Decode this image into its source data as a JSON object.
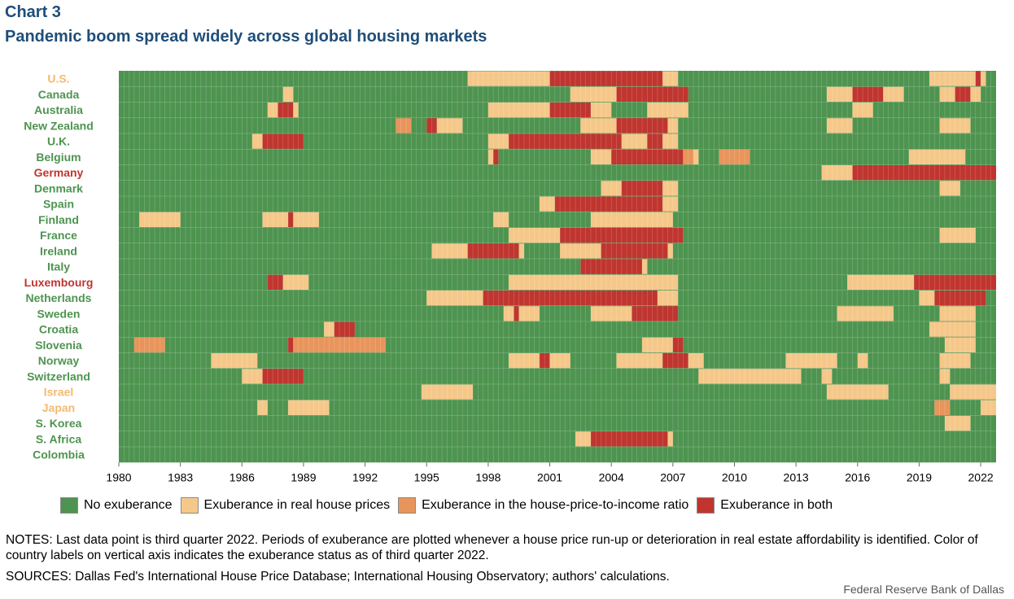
{
  "header": {
    "chart_label": "Chart 3",
    "title": "Pandemic boom spread widely across global housing markets"
  },
  "legend": [
    {
      "label": "No exuberance",
      "color": "#4e9450"
    },
    {
      "label": "Exuberance  in real house prices",
      "color": "#f5c88a"
    },
    {
      "label": "Exuberance  in the house-price-to-income  ratio",
      "color": "#e8955c"
    },
    {
      "label": "Exuberance  in both",
      "color": "#c0352f"
    }
  ],
  "notes": "NOTES: Last data point is third quarter 2022. Periods of exuberance  are plotted whenever a house price run-up or deterioration  in real estate affordability is identified. Color of country labels on vertical axis indicates the exuberance  status as of third quarter 2022.",
  "sources": "SOURCES: Dallas Fed's International  House Price Database; International  Housing Observatory; authors' calculations.",
  "credit": "Federal Reserve  Bank of Dallas",
  "chart_data": {
    "type": "heatmap",
    "title": "Pandemic boom spread widely across global housing markets",
    "x_axis": {
      "range": [
        "1980Q1",
        "2022Q3"
      ],
      "tick_labels": [
        "1980",
        "1983",
        "1986",
        "1989",
        "1992",
        "1995",
        "1998",
        "2001",
        "2004",
        "2007",
        "2010",
        "2013",
        "2016",
        "2019",
        "2022"
      ]
    },
    "frequency": "quarterly",
    "status_codes": {
      "0": "No exuberance",
      "1": "Exuberance in real house prices",
      "2": "Exuberance in the house-price-to-income ratio",
      "3": "Exuberance in both"
    },
    "colors": {
      "0": "#4e9450",
      "1": "#f5c88a",
      "2": "#e8955c",
      "3": "#c0352f"
    },
    "label_colors": {
      "0": "#4e9450",
      "1": "#f5b96e",
      "3": "#c0352f"
    },
    "default_status": 0,
    "countries": [
      {
        "name": "U.S.",
        "label_status": 1,
        "periods": [
          [
            "1997Q1",
            "2000Q4",
            1
          ],
          [
            "2001Q1",
            "2006Q2",
            3
          ],
          [
            "2006Q3",
            "2007Q1",
            1
          ],
          [
            "2019Q3",
            "2021Q3",
            1
          ],
          [
            "2021Q4",
            "2021Q4",
            3
          ],
          [
            "2022Q1",
            "2022Q1",
            1
          ]
        ]
      },
      {
        "name": "Canada",
        "label_status": 0,
        "periods": [
          [
            "1988Q1",
            "1988Q2",
            1
          ],
          [
            "2002Q1",
            "2004Q1",
            1
          ],
          [
            "2004Q2",
            "2007Q3",
            3
          ],
          [
            "2014Q3",
            "2015Q3",
            1
          ],
          [
            "2015Q4",
            "2017Q1",
            3
          ],
          [
            "2017Q2",
            "2018Q1",
            1
          ],
          [
            "2020Q1",
            "2020Q3",
            1
          ],
          [
            "2020Q4",
            "2021Q2",
            3
          ],
          [
            "2021Q3",
            "2021Q4",
            1
          ]
        ]
      },
      {
        "name": "Australia",
        "label_status": 0,
        "periods": [
          [
            "1987Q2",
            "1987Q3",
            1
          ],
          [
            "1987Q4",
            "1988Q2",
            3
          ],
          [
            "1988Q3",
            "1988Q3",
            1
          ],
          [
            "1998Q1",
            "2000Q4",
            1
          ],
          [
            "2001Q1",
            "2002Q4",
            3
          ],
          [
            "2003Q1",
            "2003Q4",
            1
          ],
          [
            "2005Q4",
            "2007Q3",
            1
          ],
          [
            "2015Q4",
            "2016Q3",
            1
          ]
        ]
      },
      {
        "name": "New Zealand",
        "label_status": 0,
        "periods": [
          [
            "1993Q3",
            "1994Q1",
            2
          ],
          [
            "1995Q1",
            "1995Q2",
            3
          ],
          [
            "1995Q3",
            "1996Q3",
            1
          ],
          [
            "2002Q3",
            "2004Q1",
            1
          ],
          [
            "2004Q2",
            "2006Q3",
            3
          ],
          [
            "2006Q4",
            "2007Q1",
            1
          ],
          [
            "2014Q3",
            "2015Q3",
            1
          ],
          [
            "2020Q1",
            "2021Q2",
            1
          ]
        ]
      },
      {
        "name": "U.K.",
        "label_status": 0,
        "periods": [
          [
            "1986Q3",
            "1986Q4",
            1
          ],
          [
            "1987Q1",
            "1988Q4",
            3
          ],
          [
            "1998Q1",
            "1998Q4",
            1
          ],
          [
            "1999Q1",
            "2004Q2",
            3
          ],
          [
            "2004Q3",
            "2005Q3",
            1
          ],
          [
            "2005Q4",
            "2006Q2",
            3
          ],
          [
            "2006Q3",
            "2007Q1",
            1
          ]
        ]
      },
      {
        "name": "Belgium",
        "label_status": 0,
        "periods": [
          [
            "1998Q1",
            "1998Q1",
            1
          ],
          [
            "1998Q2",
            "1998Q2",
            3
          ],
          [
            "2003Q1",
            "2003Q4",
            1
          ],
          [
            "2004Q1",
            "2007Q2",
            3
          ],
          [
            "2007Q3",
            "2007Q4",
            2
          ],
          [
            "2008Q1",
            "2008Q1",
            1
          ],
          [
            "2009Q2",
            "2010Q3",
            2
          ],
          [
            "2018Q3",
            "2021Q1",
            1
          ]
        ]
      },
      {
        "name": "Germany",
        "label_status": 3,
        "periods": [
          [
            "2014Q2",
            "2015Q3",
            1
          ],
          [
            "2015Q4",
            "2022Q3",
            3
          ]
        ]
      },
      {
        "name": "Denmark",
        "label_status": 0,
        "periods": [
          [
            "2003Q3",
            "2004Q2",
            1
          ],
          [
            "2004Q3",
            "2006Q2",
            3
          ],
          [
            "2006Q3",
            "2007Q1",
            1
          ],
          [
            "2020Q1",
            "2020Q4",
            1
          ]
        ]
      },
      {
        "name": "Spain",
        "label_status": 0,
        "periods": [
          [
            "2000Q3",
            "2001Q1",
            1
          ],
          [
            "2001Q2",
            "2006Q2",
            3
          ],
          [
            "2006Q3",
            "2007Q1",
            1
          ]
        ]
      },
      {
        "name": "Finland",
        "label_status": 0,
        "periods": [
          [
            "1981Q1",
            "1982Q4",
            1
          ],
          [
            "1987Q1",
            "1988Q1",
            1
          ],
          [
            "1988Q2",
            "1988Q2",
            3
          ],
          [
            "1988Q3",
            "1989Q3",
            1
          ],
          [
            "1998Q2",
            "1998Q4",
            1
          ],
          [
            "2003Q1",
            "2006Q4",
            1
          ]
        ]
      },
      {
        "name": "France",
        "label_status": 0,
        "periods": [
          [
            "1999Q1",
            "2001Q2",
            1
          ],
          [
            "2001Q3",
            "2007Q2",
            3
          ],
          [
            "2020Q1",
            "2021Q3",
            1
          ]
        ]
      },
      {
        "name": "Ireland",
        "label_status": 0,
        "periods": [
          [
            "1995Q2",
            "1996Q4",
            1
          ],
          [
            "1997Q1",
            "1999Q2",
            3
          ],
          [
            "1999Q3",
            "1999Q3",
            1
          ],
          [
            "2001Q3",
            "2003Q2",
            1
          ],
          [
            "2003Q3",
            "2006Q3",
            3
          ],
          [
            "2006Q4",
            "2006Q4",
            1
          ]
        ]
      },
      {
        "name": "Italy",
        "label_status": 0,
        "periods": [
          [
            "2002Q3",
            "2005Q2",
            3
          ],
          [
            "2005Q3",
            "2005Q3",
            1
          ]
        ]
      },
      {
        "name": "Luxembourg",
        "label_status": 3,
        "periods": [
          [
            "1987Q2",
            "1987Q4",
            3
          ],
          [
            "1988Q1",
            "1989Q1",
            1
          ],
          [
            "1999Q1",
            "2007Q1",
            1
          ],
          [
            "2015Q3",
            "2018Q3",
            1
          ],
          [
            "2018Q4",
            "2022Q3",
            3
          ]
        ]
      },
      {
        "name": "Netherlands",
        "label_status": 0,
        "periods": [
          [
            "1995Q1",
            "1997Q3",
            1
          ],
          [
            "1997Q4",
            "2006Q1",
            3
          ],
          [
            "2006Q2",
            "2007Q1",
            1
          ],
          [
            "2019Q1",
            "2019Q3",
            1
          ],
          [
            "2019Q4",
            "2022Q1",
            3
          ]
        ]
      },
      {
        "name": "Sweden",
        "label_status": 0,
        "periods": [
          [
            "1998Q4",
            "1999Q1",
            1
          ],
          [
            "1999Q2",
            "1999Q2",
            3
          ],
          [
            "1999Q3",
            "2000Q2",
            1
          ],
          [
            "2003Q1",
            "2004Q4",
            1
          ],
          [
            "2005Q1",
            "2007Q1",
            3
          ],
          [
            "2015Q1",
            "2017Q3",
            1
          ],
          [
            "2020Q1",
            "2021Q3",
            1
          ]
        ]
      },
      {
        "name": "Croatia",
        "label_status": 0,
        "periods": [
          [
            "1990Q1",
            "1990Q2",
            1
          ],
          [
            "1990Q3",
            "1991Q2",
            3
          ],
          [
            "2019Q3",
            "2021Q3",
            1
          ]
        ]
      },
      {
        "name": "Slovenia",
        "label_status": 0,
        "periods": [
          [
            "1980Q4",
            "1982Q1",
            2
          ],
          [
            "1988Q2",
            "1988Q2",
            3
          ],
          [
            "1988Q3",
            "1992Q4",
            2
          ],
          [
            "2005Q3",
            "2006Q4",
            1
          ],
          [
            "2007Q1",
            "2007Q2",
            3
          ],
          [
            "2020Q2",
            "2021Q3",
            1
          ]
        ]
      },
      {
        "name": "Norway",
        "label_status": 0,
        "periods": [
          [
            "1984Q3",
            "1986Q3",
            1
          ],
          [
            "1999Q1",
            "2000Q2",
            1
          ],
          [
            "2000Q3",
            "2000Q4",
            3
          ],
          [
            "2001Q1",
            "2001Q4",
            1
          ],
          [
            "2004Q2",
            "2006Q2",
            1
          ],
          [
            "2006Q3",
            "2007Q3",
            3
          ],
          [
            "2007Q4",
            "2008Q2",
            1
          ],
          [
            "2012Q3",
            "2014Q4",
            1
          ],
          [
            "2016Q1",
            "2016Q2",
            1
          ],
          [
            "2020Q1",
            "2021Q2",
            1
          ]
        ]
      },
      {
        "name": "Switzerland",
        "label_status": 0,
        "periods": [
          [
            "1986Q1",
            "1986Q4",
            1
          ],
          [
            "1987Q1",
            "1988Q4",
            3
          ],
          [
            "2008Q2",
            "2013Q1",
            1
          ],
          [
            "2014Q2",
            "2014Q3",
            1
          ],
          [
            "2020Q1",
            "2020Q2",
            1
          ]
        ]
      },
      {
        "name": "Israel",
        "label_status": 1,
        "periods": [
          [
            "1994Q4",
            "1997Q1",
            1
          ],
          [
            "2014Q3",
            "2017Q2",
            1
          ],
          [
            "2020Q3",
            "2022Q3",
            1
          ]
        ]
      },
      {
        "name": "Japan",
        "label_status": 1,
        "periods": [
          [
            "1986Q4",
            "1987Q1",
            1
          ],
          [
            "1988Q2",
            "1990Q1",
            1
          ],
          [
            "2019Q4",
            "2020Q2",
            2
          ],
          [
            "2022Q1",
            "2022Q3",
            1
          ]
        ]
      },
      {
        "name": "S. Korea",
        "label_status": 0,
        "periods": [
          [
            "2020Q2",
            "2021Q2",
            1
          ]
        ]
      },
      {
        "name": "S. Africa",
        "label_status": 0,
        "periods": [
          [
            "2002Q2",
            "2002Q4",
            1
          ],
          [
            "2003Q1",
            "2006Q3",
            3
          ],
          [
            "2006Q4",
            "2006Q4",
            1
          ]
        ]
      },
      {
        "name": "Colombia",
        "label_status": 0,
        "periods": []
      }
    ]
  }
}
